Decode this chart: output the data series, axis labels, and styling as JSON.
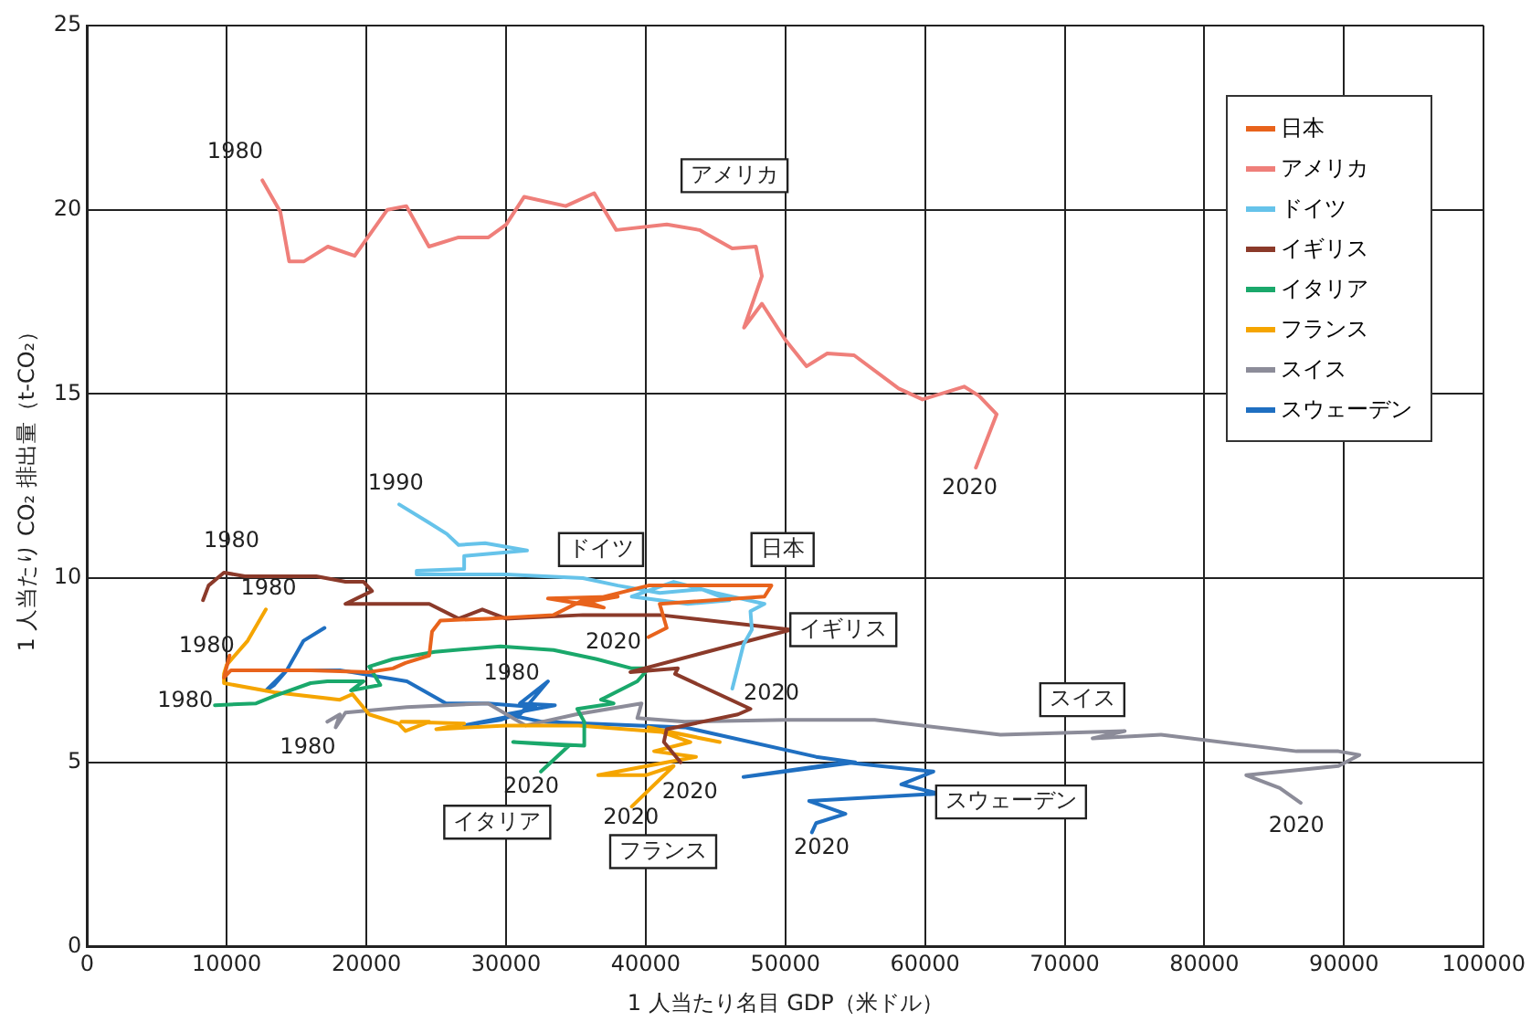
{
  "chart_data": {
    "type": "line",
    "xlabel": "1 人当たり名目 GDP（米ドル）",
    "ylabel": "1 人当たり CO₂ 排出量（t-CO₂）",
    "xlim": [
      0,
      100000
    ],
    "xticks": [
      0,
      10000,
      20000,
      30000,
      40000,
      50000,
      60000,
      70000,
      80000,
      90000,
      100000
    ],
    "ylim": [
      0,
      25
    ],
    "yticks": [
      0,
      5,
      10,
      15,
      20,
      25
    ],
    "grid": true,
    "legend": "top right",
    "marker": "none",
    "line_style": "solid",
    "series": [
      {
        "name": "日本",
        "color": "#e8631c",
        "x": [
          10000,
          10200,
          9800,
          10300,
          11500,
          16000,
          20200,
          21900,
          22800,
          24500,
          24700,
          25300,
          28700,
          33400,
          35500,
          37000,
          33000,
          38000,
          35000,
          40200,
          49000,
          48500,
          41000,
          41500,
          40200
        ],
        "values": [
          7.6,
          7.9,
          7.3,
          7.5,
          7.5,
          7.5,
          7.45,
          7.55,
          7.7,
          7.9,
          8.55,
          8.85,
          8.9,
          9.0,
          9.4,
          9.2,
          9.45,
          9.5,
          9.3,
          9.8,
          9.8,
          9.5,
          9.3,
          8.65,
          8.4
        ]
      },
      {
        "name": "アメリカ",
        "color": "#ef7f7a",
        "x": [
          12550,
          13830,
          14470,
          15540,
          17240,
          19160,
          21500,
          22860,
          24480,
          26600,
          28740,
          30010,
          31290,
          34270,
          36310,
          37890,
          41510,
          43850,
          46190,
          47890,
          48320,
          47040,
          48320,
          50030,
          51510,
          53000,
          54920,
          58110,
          59820,
          62800,
          63860,
          65130,
          63640
        ],
        "values": [
          20.8,
          19.95,
          18.6,
          18.6,
          19.0,
          18.75,
          20.0,
          20.1,
          19.0,
          19.25,
          19.25,
          19.6,
          20.35,
          20.1,
          20.45,
          19.45,
          19.6,
          19.45,
          18.95,
          19.0,
          18.2,
          16.8,
          17.45,
          16.45,
          15.75,
          16.1,
          16.05,
          15.15,
          14.85,
          15.2,
          14.95,
          14.45,
          13.0
        ]
      },
      {
        "name": "ドイツ",
        "color": "#66c3ea",
        "x": [
          22350,
          24500,
          25760,
          26600,
          28500,
          31500,
          27000,
          27000,
          23600,
          23600,
          30000,
          35500,
          38000,
          41000,
          44000,
          46000,
          43000,
          39000,
          42000,
          45000,
          48500,
          47500,
          47600,
          47000,
          46200
        ],
        "values": [
          12.0,
          11.5,
          11.2,
          10.9,
          10.95,
          10.75,
          10.6,
          10.25,
          10.2,
          10.1,
          10.1,
          10.0,
          9.8,
          9.6,
          9.7,
          9.4,
          9.3,
          9.5,
          9.9,
          9.6,
          9.3,
          9.1,
          8.6,
          8.2,
          7.0
        ]
      },
      {
        "name": "イギリス",
        "color": "#8b3a2a",
        "x": [
          8300,
          8700,
          9800,
          11300,
          16400,
          18500,
          19800,
          20400,
          18500,
          24500,
          26600,
          28300,
          30000,
          35500,
          41000,
          50400,
          38900,
          42300,
          42100,
          47500,
          46600,
          41500,
          41300,
          42500
        ],
        "values": [
          9.4,
          9.8,
          10.15,
          10.05,
          10.05,
          9.9,
          9.9,
          9.65,
          9.3,
          9.3,
          8.9,
          9.15,
          8.9,
          9.0,
          9.0,
          8.6,
          7.45,
          7.55,
          7.4,
          6.45,
          6.3,
          5.9,
          5.55,
          5.0
        ]
      },
      {
        "name": "イタリア",
        "color": "#1aa86b",
        "x": [
          9150,
          12100,
          13400,
          16000,
          17200,
          19800,
          18900,
          21000,
          20200,
          21900,
          24900,
          29600,
          33400,
          36500,
          39000,
          40200,
          39400,
          36800,
          37700,
          35100,
          35600,
          35600,
          30500,
          34500,
          32500
        ],
        "values": [
          6.55,
          6.6,
          6.8,
          7.15,
          7.2,
          7.2,
          6.95,
          7.1,
          7.6,
          7.8,
          8.0,
          8.15,
          8.05,
          7.8,
          7.55,
          7.55,
          7.2,
          6.7,
          6.6,
          6.45,
          6.1,
          5.45,
          5.55,
          5.45,
          4.75
        ]
      },
      {
        "name": "フランス",
        "color": "#f5a500",
        "x": [
          12800,
          11500,
          10000,
          9800,
          9800,
          13400,
          18100,
          19000,
          20200,
          22300,
          22800,
          24500,
          22500,
          27000,
          25000,
          30000,
          35200,
          42000,
          45300,
          40200,
          43200,
          40600,
          43600,
          36600,
          40000,
          42000,
          39000
        ],
        "values": [
          9.15,
          8.3,
          7.65,
          7.4,
          7.15,
          6.9,
          6.7,
          6.85,
          6.3,
          6.05,
          5.85,
          6.1,
          6.1,
          6.05,
          5.9,
          6.0,
          6.0,
          5.8,
          5.55,
          5.95,
          5.55,
          5.3,
          5.15,
          4.65,
          4.65,
          4.9,
          3.8
        ]
      },
      {
        "name": "スイス",
        "color": "#8c8c99",
        "x": [
          17200,
          18100,
          17800,
          18500,
          22900,
          28700,
          31400,
          35000,
          39700,
          39400,
          42800,
          50000,
          56400,
          65400,
          74300,
          72000,
          76900,
          86600,
          89600,
          91100,
          89600,
          83000,
          85400,
          86900
        ],
        "values": [
          6.1,
          6.3,
          5.95,
          6.35,
          6.5,
          6.6,
          6.0,
          6.3,
          6.6,
          6.2,
          6.1,
          6.15,
          6.15,
          5.75,
          5.85,
          5.65,
          5.75,
          5.3,
          5.3,
          5.2,
          4.9,
          4.65,
          4.3,
          3.9
        ]
      },
      {
        "name": "スウェーデン",
        "color": "#1f6fc1",
        "x": [
          17000,
          15500,
          14300,
          12800,
          13400,
          14300,
          18100,
          22900,
          25700,
          28700,
          32100,
          29600,
          27000,
          31000,
          33000,
          31000,
          33500,
          30000,
          32600,
          42800,
          52200,
          55000,
          47000,
          54300,
          60600,
          58300,
          61000,
          51700,
          54300,
          52200,
          51900
        ],
        "values": [
          8.65,
          8.3,
          7.5,
          6.95,
          7.1,
          7.5,
          7.5,
          7.2,
          6.6,
          6.6,
          6.5,
          6.15,
          6.0,
          6.3,
          7.2,
          6.6,
          6.55,
          6.3,
          6.1,
          5.95,
          5.15,
          5.0,
          4.6,
          5.0,
          4.75,
          4.4,
          4.15,
          3.95,
          3.6,
          3.35,
          3.1
        ]
      }
    ],
    "annotations": [
      "日本",
      "アメリカ",
      "ドイツ",
      "イギリス",
      "イタリア",
      "フランス",
      "スイス",
      "スウェーデン",
      "1980",
      "2020",
      "1990",
      "1980",
      "1980",
      "1980",
      "1980",
      "1980",
      "1980",
      "2020",
      "2020",
      "2020",
      "2020",
      "2020",
      "2020",
      "2020"
    ]
  }
}
